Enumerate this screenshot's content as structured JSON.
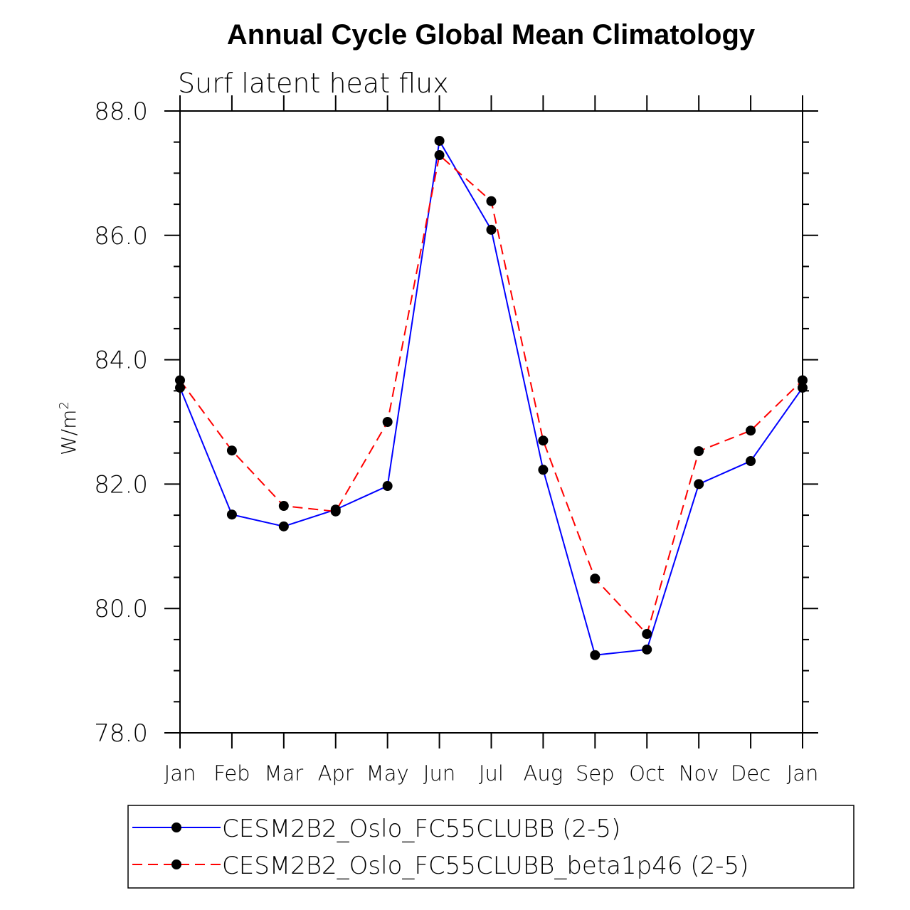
{
  "chart_data": {
    "type": "line",
    "title": "Annual Cycle Global Mean Climatology",
    "subtitle": "Surf latent heat flux",
    "xlabel": "",
    "ylabel": "W/m",
    "ylabel_superscript": "2",
    "ylim": [
      78.0,
      88.0
    ],
    "yticks": [
      "78.0",
      "80.0",
      "82.0",
      "84.0",
      "86.0",
      "88.0"
    ],
    "ytick_values": [
      78,
      80,
      82,
      84,
      86,
      88
    ],
    "categories": [
      "Jan",
      "Feb",
      "Mar",
      "Apr",
      "May",
      "Jun",
      "Jul",
      "Aug",
      "Sep",
      "Oct",
      "Nov",
      "Dec",
      "Jan"
    ],
    "legend_position": "bottom",
    "series": [
      {
        "name": "CESM2B2_Oslo_FC55CLUBB (2-5)",
        "color": "#0000ff",
        "dash": "solid",
        "values": [
          83.55,
          81.51,
          81.32,
          81.59,
          81.97,
          87.52,
          86.09,
          82.23,
          79.25,
          79.34,
          82.0,
          82.37,
          83.55
        ]
      },
      {
        "name": "CESM2B2_Oslo_FC55CLUBB_beta1p46 (2-5)",
        "color": "#ff0000",
        "dash": "dashed",
        "values": [
          83.67,
          82.54,
          81.65,
          81.56,
          83.0,
          87.29,
          86.55,
          82.7,
          80.48,
          79.59,
          82.53,
          82.86,
          83.67
        ]
      }
    ]
  }
}
